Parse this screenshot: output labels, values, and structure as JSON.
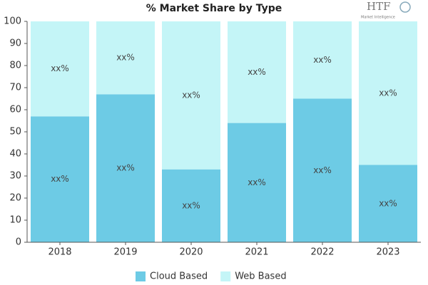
{
  "chart_data": {
    "type": "stacked-bar",
    "title": "% Market Share by Type",
    "logo": {
      "text": "HTF",
      "subtext": "Market Intelligence"
    },
    "categories": [
      "2018",
      "2019",
      "2020",
      "2021",
      "2022",
      "2023"
    ],
    "series": [
      {
        "name": "Cloud Based",
        "color": "#6dcbe5",
        "values": [
          57,
          67,
          33,
          54,
          65,
          35
        ],
        "labels": [
          "xx%",
          "xx%",
          "xx%",
          "xx%",
          "xx%",
          "xx%"
        ]
      },
      {
        "name": "Web Based",
        "color": "#c4f5f7",
        "values": [
          43,
          33,
          67,
          46,
          35,
          65
        ],
        "labels": [
          "xx%",
          "xx%",
          "xx%",
          "xx%",
          "xx%",
          "xx%"
        ]
      }
    ],
    "ylim": [
      0,
      100
    ],
    "yticks": [
      0,
      10,
      20,
      30,
      40,
      50,
      60,
      70,
      80,
      90,
      100
    ],
    "legend": "bottom"
  }
}
